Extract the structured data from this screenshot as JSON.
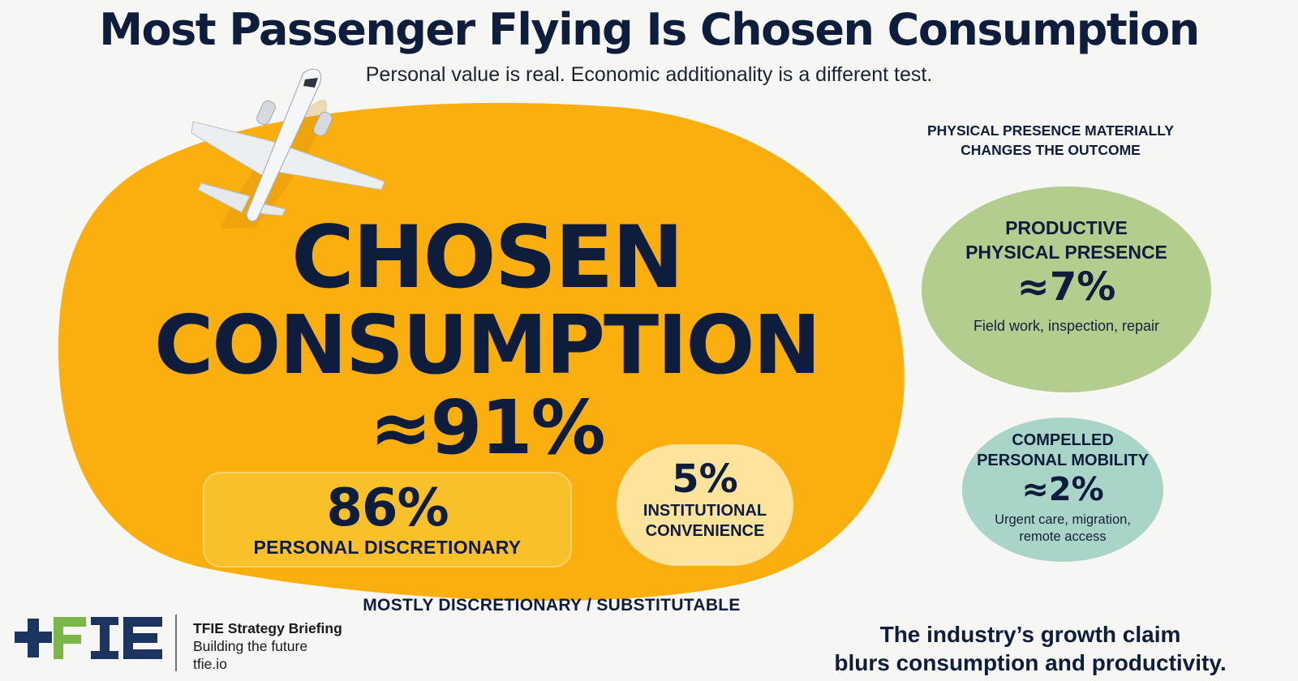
{
  "header": {
    "title": "Most Passenger Flying Is Chosen Consumption",
    "subtitle": "Personal value is real. Economic additionality is a different test."
  },
  "main_blob": {
    "label_line1": "CHOSEN",
    "label_line2": "CONSUMPTION",
    "share": "≈91%",
    "share_value_percent": 91,
    "color": "#fbaf0e",
    "caption": "MOSTLY DISCRETIONARY / SUBSTITUTABLE",
    "sub_segments": [
      {
        "value": "86%",
        "label": "PERSONAL DISCRETIONARY",
        "value_percent": 86
      },
      {
        "value": "5%",
        "label_line1": "INSTITUTIONAL",
        "label_line2": "CONVENIENCE",
        "value_percent": 5
      }
    ]
  },
  "right_panel": {
    "heading_line1": "PHYSICAL PRESENCE MATERIALLY",
    "heading_line2": "CHANGES THE OUTCOME",
    "segments": [
      {
        "label_line1": "PRODUCTIVE",
        "label_line2": "PHYSICAL PRESENCE",
        "value": "≈7%",
        "value_percent": 7,
        "description": "Field work, inspection, repair",
        "color": "#b3cd8f"
      },
      {
        "label_line1": "COMPELLED",
        "label_line2": "PERSONAL MOBILITY",
        "value": "≈2%",
        "value_percent": 2,
        "description_line1": "Urgent care, migration,",
        "description_line2": "remote access",
        "color": "#a9d5c8"
      }
    ]
  },
  "footer": {
    "logo_text": "TFIE",
    "brand_name": "TFIE Strategy Briefing",
    "tagline": "Building the future",
    "website": "tfie.io",
    "conclusion_line1": "The industry’s growth claim",
    "conclusion_line2": "blurs consumption and productivity."
  },
  "colors": {
    "navy": "#0f1d3d",
    "amber": "#fbaf0e",
    "logo_blue": "#1b3560",
    "logo_green": "#7ab648"
  },
  "icons": [
    "airplane-icon"
  ]
}
